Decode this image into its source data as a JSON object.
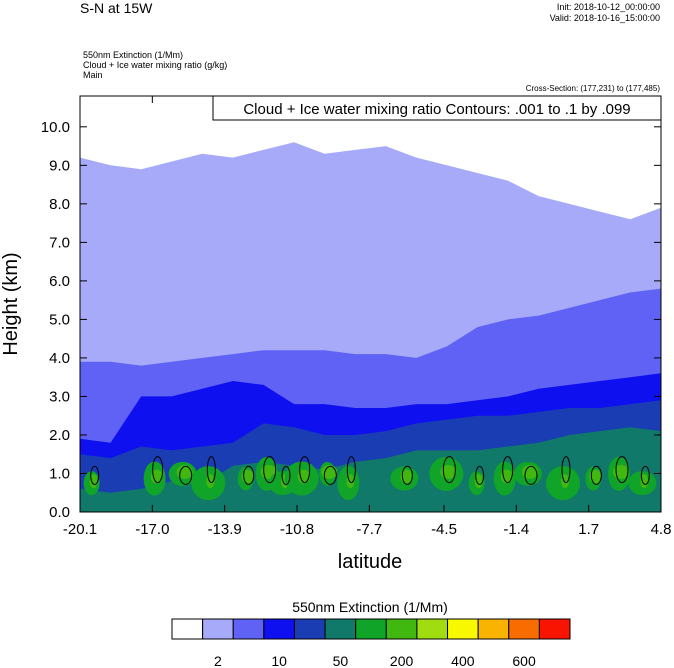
{
  "header": {
    "title": "S-N at 15W",
    "init": "Init: 2018-10-12_00:00:00",
    "valid": "Valid: 2018-10-16_15:00:00",
    "field1": "550nm Extinction   (1/Mm)",
    "field2": "Cloud + Ice water mixing ratio   (g/kg)",
    "field3": "Main",
    "cross_section": "Cross-Section: (177,231) to (177,485)"
  },
  "chart_data": {
    "type": "heatmap",
    "title": "S-N at 15W",
    "xlabel": "latitude",
    "ylabel": "Height (km)",
    "xlim": [
      -20.1,
      4.8
    ],
    "ylim": [
      0.0,
      10.8
    ],
    "x_ticks": [
      "-20.1",
      "-17.0",
      "-13.9",
      "-10.8",
      "-7.7",
      "-4.5",
      "-1.4",
      "1.7",
      "4.8"
    ],
    "y_ticks": [
      "0.0",
      "1.0",
      "2.0",
      "3.0",
      "4.0",
      "5.0",
      "6.0",
      "7.0",
      "8.0",
      "9.0",
      "10.0"
    ],
    "contour_label": "Cloud + Ice water mixing ratio Contours: .001 to .1 by .099",
    "colorbar": {
      "title": "550nm Extinction  (1/Mm)",
      "tick_labels": [
        "2",
        "10",
        "50",
        "200",
        "400",
        "600"
      ],
      "colors": [
        "#ffffff",
        "#a7aaf8",
        "#5f62f4",
        "#0f10ef",
        "#1a3db3",
        "#10796a",
        "#10a428",
        "#40b810",
        "#a0dc10",
        "#f8f800",
        "#f8b400",
        "#f86c00",
        "#f81400"
      ]
    },
    "layer_tops_km": {
      "band_2_10": [
        9.2,
        9.0,
        8.9,
        9.1,
        9.3,
        9.2,
        9.4,
        9.6,
        9.3,
        9.4,
        9.5,
        9.2,
        9.0,
        8.8,
        8.6,
        8.2,
        8.0,
        7.8,
        7.6,
        7.9
      ],
      "band_10_50": [
        3.9,
        3.9,
        3.8,
        3.9,
        4.0,
        4.1,
        4.2,
        4.2,
        4.2,
        4.1,
        4.1,
        4.0,
        4.3,
        4.8,
        5.0,
        5.1,
        5.3,
        5.5,
        5.7,
        5.8
      ],
      "band_50_100": [
        1.9,
        1.8,
        3.0,
        3.0,
        3.2,
        3.4,
        3.3,
        2.8,
        2.8,
        2.7,
        2.7,
        2.8,
        2.8,
        2.9,
        3.0,
        3.2,
        3.3,
        3.4,
        3.5,
        3.6
      ],
      "band_100_150": [
        1.5,
        1.4,
        1.7,
        1.6,
        1.7,
        1.8,
        2.3,
        2.2,
        2.0,
        2.0,
        2.1,
        2.3,
        2.4,
        2.5,
        2.5,
        2.6,
        2.7,
        2.7,
        2.8,
        2.9
      ],
      "band_150_200": [
        0.6,
        0.5,
        0.6,
        0.8,
        0.7,
        1.2,
        1.3,
        1.2,
        1.1,
        1.3,
        1.4,
        1.6,
        1.6,
        1.6,
        1.7,
        1.8,
        2.0,
        2.1,
        2.2,
        2.1
      ]
    }
  }
}
